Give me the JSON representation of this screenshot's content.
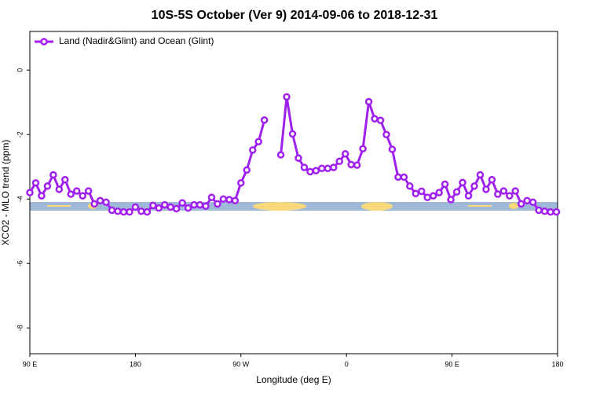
{
  "chart_data": {
    "type": "line",
    "title": "10S-5S October (Ver 9)   2014-09-06 to 2018-12-31",
    "xlabel": "Longitude (deg E)",
    "ylabel": "XCO2 - MLO trend (ppm)",
    "xlim": [
      90,
      540
    ],
    "xticks": [
      {
        "value": 90,
        "label": "90 E"
      },
      180,
      {
        "value": 270,
        "label": "90 W"
      },
      {
        "value": 360,
        "label": "0"
      },
      {
        "value": 450,
        "label": "90 E"
      },
      {
        "value": 540,
        "label": "180"
      }
    ],
    "ylim": [
      -8.8,
      1.2
    ],
    "yticks": [
      0,
      -2,
      -4,
      -6,
      -8
    ],
    "legend": "upper left",
    "series": [
      {
        "name": "Land (Nadir&Glint) and Ocean (Glint)",
        "color": "#a020f0",
        "x": [
          90,
          95,
          100,
          105,
          110,
          115,
          120,
          125,
          130,
          135,
          140,
          145,
          150,
          155,
          160,
          165,
          170,
          175,
          180,
          185,
          190,
          195,
          200,
          205,
          210,
          215,
          220,
          225,
          230,
          235,
          240,
          245,
          250,
          255,
          260,
          265,
          270,
          275,
          280,
          285,
          290,
          297,
          304,
          309,
          314,
          319,
          324,
          329,
          334,
          339,
          344,
          349,
          354,
          359,
          364,
          369,
          374,
          379,
          384,
          389,
          394,
          399,
          404,
          409,
          414,
          419,
          424,
          429,
          434,
          439,
          444,
          449,
          454,
          459,
          464,
          469,
          474,
          479,
          484,
          489,
          494,
          499,
          504,
          509,
          514,
          519,
          524,
          529,
          534,
          539
        ],
        "values": [
          -3.8,
          -3.5,
          -3.9,
          -3.6,
          -3.25,
          -3.7,
          -3.4,
          -3.85,
          -3.75,
          -3.9,
          -3.75,
          -4.15,
          -4.05,
          -4.1,
          -4.35,
          -4.38,
          -4.4,
          -4.4,
          -4.25,
          -4.38,
          -4.4,
          -4.2,
          -4.28,
          -4.18,
          -4.25,
          -4.3,
          -4.12,
          -4.28,
          -4.18,
          -4.18,
          -4.22,
          -3.95,
          -4.15,
          -4.0,
          -4.02,
          -4.05,
          -3.5,
          -3.1,
          -2.48,
          -2.22,
          -1.55,
          null,
          -2.63,
          -0.83,
          -1.98,
          -2.73,
          -3.02,
          -3.15,
          -3.12,
          -3.05,
          -3.05,
          -3.02,
          -2.83,
          -2.6,
          -2.93,
          -2.95,
          -2.44,
          -0.98,
          -1.51,
          -1.56,
          -2.0,
          -2.46,
          -3.32,
          -3.32,
          -3.6,
          -3.83,
          -3.76,
          -3.95,
          -3.9,
          -3.8,
          -3.54,
          -4.02,
          -3.78,
          -3.49,
          -3.9,
          -3.6,
          -3.25,
          -3.7,
          -3.4,
          -3.85,
          -3.75,
          -3.9,
          -3.75,
          -4.15,
          -4.05,
          -4.1,
          -4.35,
          -4.38,
          -4.4,
          -4.4
        ]
      }
    ]
  }
}
